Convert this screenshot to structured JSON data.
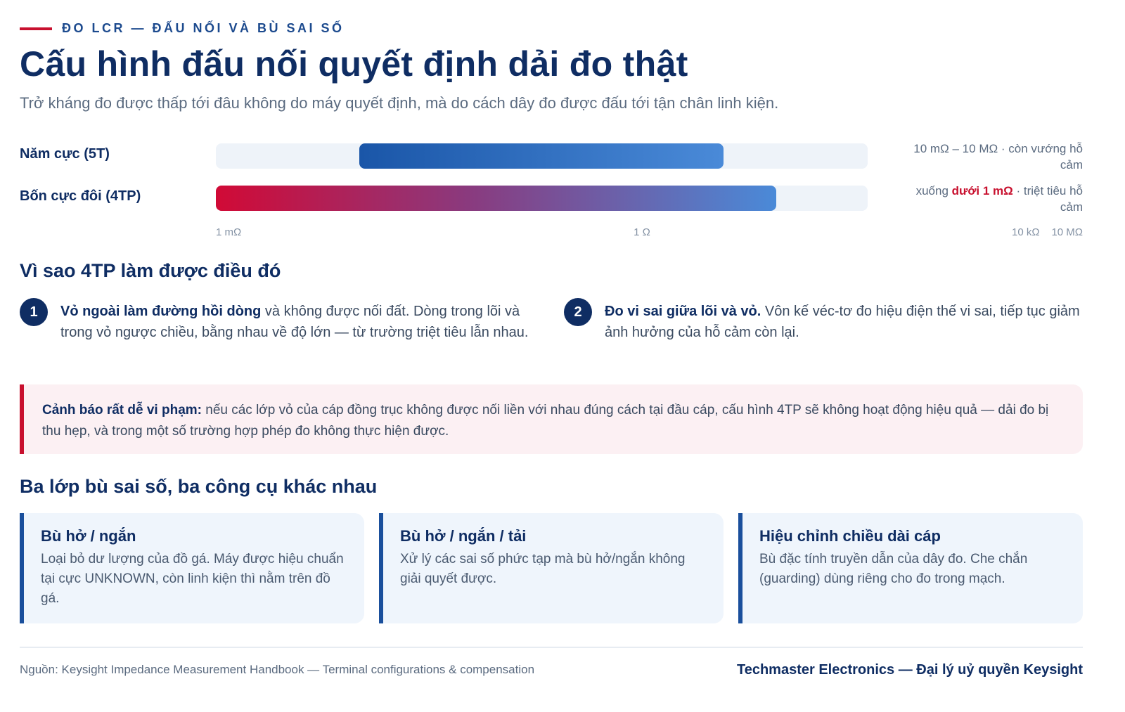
{
  "header": {
    "eyebrow": "ĐO LCR — ĐẤU NỐI VÀ BÙ SAI SỐ",
    "title": "Cấu hình đấu nối quyết định dải đo thật",
    "subtitle": "Trở kháng đo được thấp tới đâu không do máy quyết định, mà do cách dây đo được đấu tới tận chân linh kiện."
  },
  "chart_data": {
    "type": "range-bar",
    "axis_scale": "log",
    "axis_ticks": [
      {
        "label": "1 mΩ",
        "value_ohm": 0.001
      },
      {
        "label": "1 Ω",
        "value_ohm": 1
      },
      {
        "label": "10 kΩ",
        "value_ohm": 10000
      },
      {
        "label": "10 MΩ",
        "value_ohm": 10000000
      }
    ],
    "series": [
      {
        "name": "Năm cực (5T)",
        "min_ohm": 0.01,
        "max_ohm": 10000000,
        "note": "10 mΩ – 10 MΩ · còn vướng hỗ cảm",
        "color": "#1a56a8"
      },
      {
        "name": "Bốn cực đôi (4TP)",
        "min_ohm": 0.001,
        "max_ohm": 10000000,
        "note_prefix": "xuống ",
        "note_strong": "dưới 1 mΩ",
        "note_suffix": " · triệt tiêu hỗ cảm",
        "color": "#c8102e"
      }
    ]
  },
  "reasons": {
    "heading": "Vì sao 4TP làm được điều đó",
    "items": [
      {
        "num": "1",
        "lead": "Vỏ ngoài làm đường hồi dòng",
        "text": " và không được nối đất. Dòng trong lõi và trong vỏ ngược chiều, bằng nhau về độ lớn — từ trường triệt tiêu lẫn nhau."
      },
      {
        "num": "2",
        "lead": "Đo vi sai giữa lõi và vỏ.",
        "text": " Vôn kế véc-tơ đo hiệu điện thế vi sai, tiếp tục giảm ảnh hưởng của hỗ cảm còn lại."
      }
    ]
  },
  "warning": {
    "lead": "Cảnh báo rất dễ vi phạm:",
    "text": " nếu các lớp vỏ của cáp đồng trục không được nối liền với nhau đúng cách tại đầu cáp, cấu hình 4TP sẽ không hoạt động hiệu quả — dải đo bị thu hẹp, và trong một số trường hợp phép đo không thực hiện được.",
    "accent": "#c8102e"
  },
  "compensation": {
    "heading": "Ba lớp bù sai số, ba công cụ khác nhau",
    "cards": [
      {
        "title": "Bù hở / ngắn",
        "body": "Loại bỏ dư lượng của đồ gá. Máy được hiệu chuẩn tại cực UNKNOWN, còn linh kiện thì nằm trên đồ gá."
      },
      {
        "title": "Bù hở / ngắn / tải",
        "body": "Xử lý các sai số phức tạp mà bù hở/ngắn không giải quyết được."
      },
      {
        "title": "Hiệu chỉnh chiều dài cáp",
        "body": "Bù đặc tính truyền dẫn của dây đo. Che chắn (guarding) dùng riêng cho đo trong mạch."
      }
    ]
  },
  "footer": {
    "source": "Nguồn: Keysight Impedance Measurement Handbook — Terminal configurations & compensation",
    "brand": "Techmaster Electronics — Đại lý uỷ quyền Keysight"
  }
}
